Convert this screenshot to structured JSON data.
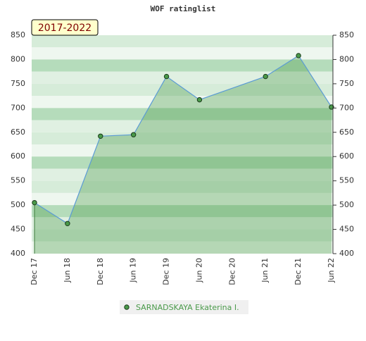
{
  "chart_data": {
    "type": "line",
    "title": "WOF ratinglist",
    "annotation": "2017-2022",
    "categories": [
      "Dec 17",
      "Jun 18",
      "Dec 18",
      "Jun 19",
      "Dec 19",
      "Jun 20",
      "Dec 20",
      "Jun 21",
      "Dec 21",
      "Jun 22"
    ],
    "series": [
      {
        "name": "SARNADSKAYA Ekaterina I.",
        "color": "#4a9a4a",
        "x": [
          "Dec 17",
          "Jun 18",
          "Dec 18",
          "Jun 19",
          "Dec 19",
          "Jun 20",
          "Jun 21",
          "Dec 21",
          "Jun 22"
        ],
        "values": [
          505,
          462,
          642,
          645,
          765,
          717,
          765,
          808,
          702
        ]
      }
    ],
    "ylim": [
      400,
      850
    ],
    "yticks": [
      400,
      450,
      500,
      550,
      600,
      650,
      700,
      750,
      800,
      850
    ],
    "grid": true
  }
}
